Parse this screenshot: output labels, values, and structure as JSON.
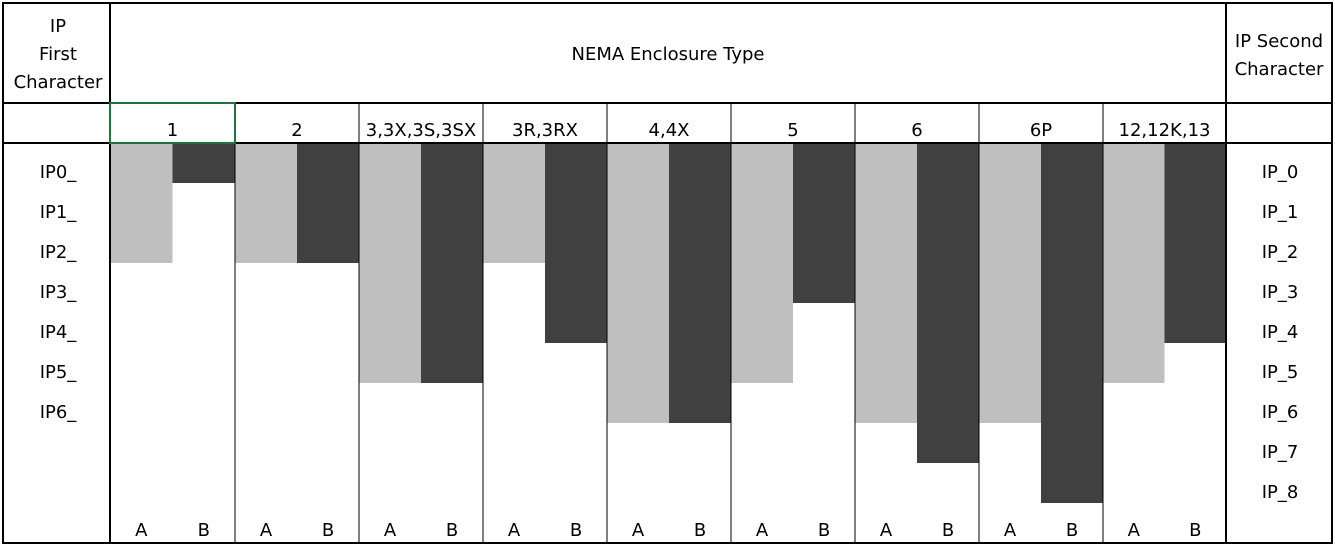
{
  "headers": {
    "left": [
      "IP",
      "First",
      "Character"
    ],
    "middle": "NEMA Enclosure Type",
    "right": [
      "IP Second",
      "Character"
    ]
  },
  "enclosures": [
    {
      "name": "1",
      "a": 2,
      "b": 0
    },
    {
      "name": "2",
      "a": 2,
      "b": 2
    },
    {
      "name": "3,3X,3S,3SX",
      "a": 5,
      "b": 5
    },
    {
      "name": "3R,3RX",
      "a": 2,
      "b": 4
    },
    {
      "name": "4,4X",
      "a": 6,
      "b": 6
    },
    {
      "name": "5",
      "a": 5,
      "b": 3
    },
    {
      "name": "6",
      "a": 6,
      "b": 7
    },
    {
      "name": "6P",
      "a": 6,
      "b": 8
    },
    {
      "name": "12,12K,13",
      "a": 5,
      "b": 4
    }
  ],
  "sub_labels": [
    "A",
    "B"
  ],
  "first_character_labels": [
    "IP0_",
    "IP1_",
    "IP2_",
    "IP3_",
    "IP4_",
    "IP5_",
    "IP6_"
  ],
  "second_character_labels": [
    "IP_0",
    "IP_1",
    "IP_2",
    "IP_3",
    "IP_4",
    "IP_5",
    "IP_6",
    "IP_7",
    "IP_8"
  ]
}
